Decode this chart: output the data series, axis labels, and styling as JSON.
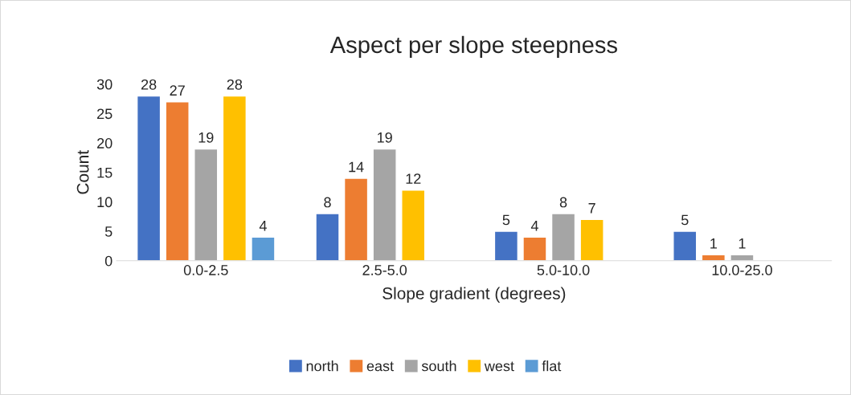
{
  "chart_data": {
    "type": "bar",
    "title": "Aspect per slope steepness",
    "xlabel": "Slope gradient (degrees)",
    "ylabel": "Count",
    "categories": [
      "0.0-2.5",
      "2.5-5.0",
      "5.0-10.0",
      "10.0-25.0"
    ],
    "series": [
      {
        "name": "north",
        "color": "#4472c4",
        "values": [
          28,
          8,
          5,
          5
        ]
      },
      {
        "name": "east",
        "color": "#ed7d31",
        "values": [
          27,
          14,
          4,
          1
        ]
      },
      {
        "name": "south",
        "color": "#a5a5a5",
        "values": [
          19,
          19,
          8,
          1
        ]
      },
      {
        "name": "west",
        "color": "#ffc000",
        "values": [
          28,
          12,
          7,
          null
        ]
      },
      {
        "name": "flat",
        "color": "#5b9bd5",
        "values": [
          4,
          null,
          null,
          null
        ]
      }
    ],
    "ylim": [
      0,
      30
    ],
    "yticks": [
      0,
      5,
      10,
      15,
      20,
      25,
      30
    ],
    "grid": false,
    "legend": "bottom",
    "data_labels": true
  }
}
